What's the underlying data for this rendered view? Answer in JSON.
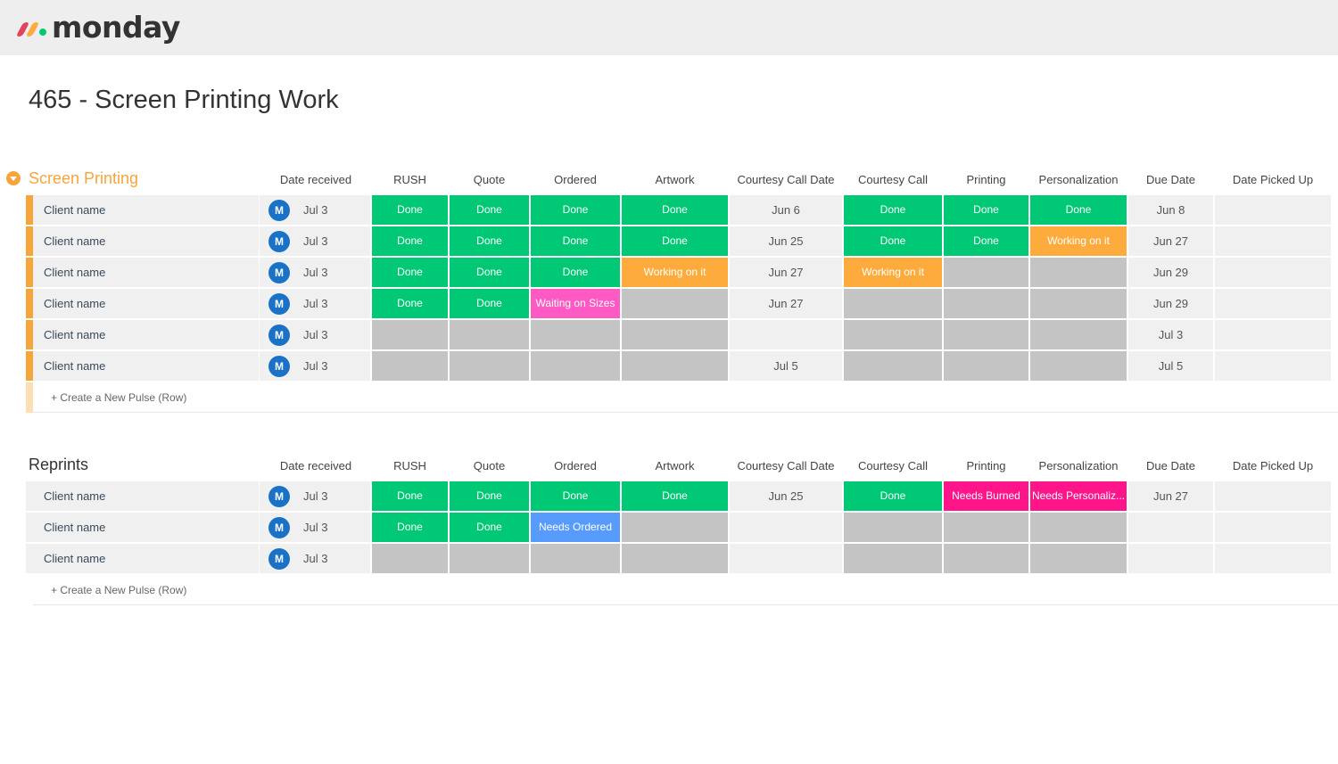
{
  "app": {
    "logo_text": "monday"
  },
  "board": {
    "title": "465 - Screen Printing Work"
  },
  "colors": {
    "done": "#00c875",
    "working": "#fdab3d",
    "waiting": "#ff5ac4",
    "needs_ordered": "#579bfc",
    "needs": "#ff158a",
    "empty": "#c4c4c4",
    "group1_stripe": "#f6a53b",
    "group2_stripe": "#f0f0f0"
  },
  "columns": [
    "Date received",
    "RUSH",
    "Quote",
    "Ordered",
    "Artwork",
    "Courtesy Call Date",
    "Courtesy Call",
    "Printing",
    "Personalization",
    "Due Date",
    "Date Picked Up"
  ],
  "groups": [
    {
      "name": "Screen Printing",
      "color": "#f6a53b",
      "create_label": "+ Create a New Pulse (Row)",
      "rows": [
        {
          "name": "Client name",
          "avatar": "M",
          "date_received": "Jul 3",
          "rush": "Done",
          "quote": "Done",
          "ordered": "Done",
          "artwork": "Done",
          "cc_date": "Jun 6",
          "cc": "Done",
          "printing": "Done",
          "personalization": "Done",
          "due": "Jun 8",
          "picked": ""
        },
        {
          "name": "Client name",
          "avatar": "M",
          "date_received": "Jul 3",
          "rush": "Done",
          "quote": "Done",
          "ordered": "Done",
          "artwork": "Done",
          "cc_date": "Jun 25",
          "cc": "Done",
          "printing": "Done",
          "personalization": "Working on it",
          "due": "Jun 27",
          "picked": ""
        },
        {
          "name": "Client name",
          "avatar": "M",
          "date_received": "Jul 3",
          "rush": "Done",
          "quote": "Done",
          "ordered": "Done",
          "artwork": "Working on it",
          "cc_date": "Jun 27",
          "cc": "Working on it",
          "printing": "",
          "personalization": "",
          "due": "Jun 29",
          "picked": ""
        },
        {
          "name": "Client name",
          "avatar": "M",
          "date_received": "Jul 3",
          "rush": "Done",
          "quote": "Done",
          "ordered": "Waiting on Sizes",
          "artwork": "",
          "cc_date": "Jun 27",
          "cc": "",
          "printing": "",
          "personalization": "",
          "due": "Jun 29",
          "picked": ""
        },
        {
          "name": "Client name",
          "avatar": "M",
          "date_received": "Jul 3",
          "rush": "",
          "quote": "",
          "ordered": "",
          "artwork": "",
          "cc_date": "",
          "cc": "",
          "printing": "",
          "personalization": "",
          "due": "Jul 3",
          "picked": ""
        },
        {
          "name": "Client name",
          "avatar": "M",
          "date_received": "Jul 3",
          "rush": "",
          "quote": "",
          "ordered": "",
          "artwork": "",
          "cc_date": "Jul 5",
          "cc": "",
          "printing": "",
          "personalization": "",
          "due": "Jul 5",
          "picked": ""
        }
      ]
    },
    {
      "name": "Reprints",
      "color": "#333333",
      "create_label": "+ Create a New Pulse (Row)",
      "rows": [
        {
          "name": "Client name",
          "avatar": "M",
          "date_received": "Jul 3",
          "rush": "Done",
          "quote": "Done",
          "ordered": "Done",
          "artwork": "Done",
          "cc_date": "Jun 25",
          "cc": "Done",
          "printing": "Needs Burned",
          "personalization": "Needs Personaliz...",
          "due": "Jun 27",
          "picked": ""
        },
        {
          "name": "Client name",
          "avatar": "M",
          "date_received": "Jul 3",
          "rush": "Done",
          "quote": "Done",
          "ordered": "Needs Ordered",
          "artwork": "",
          "cc_date": "",
          "cc": "",
          "printing": "",
          "personalization": "",
          "due": "",
          "picked": ""
        },
        {
          "name": "Client name",
          "avatar": "M",
          "date_received": "Jul 3",
          "rush": "",
          "quote": "",
          "ordered": "",
          "artwork": "",
          "cc_date": "",
          "cc": "",
          "printing": "",
          "personalization": "",
          "due": "",
          "picked": ""
        }
      ]
    }
  ]
}
